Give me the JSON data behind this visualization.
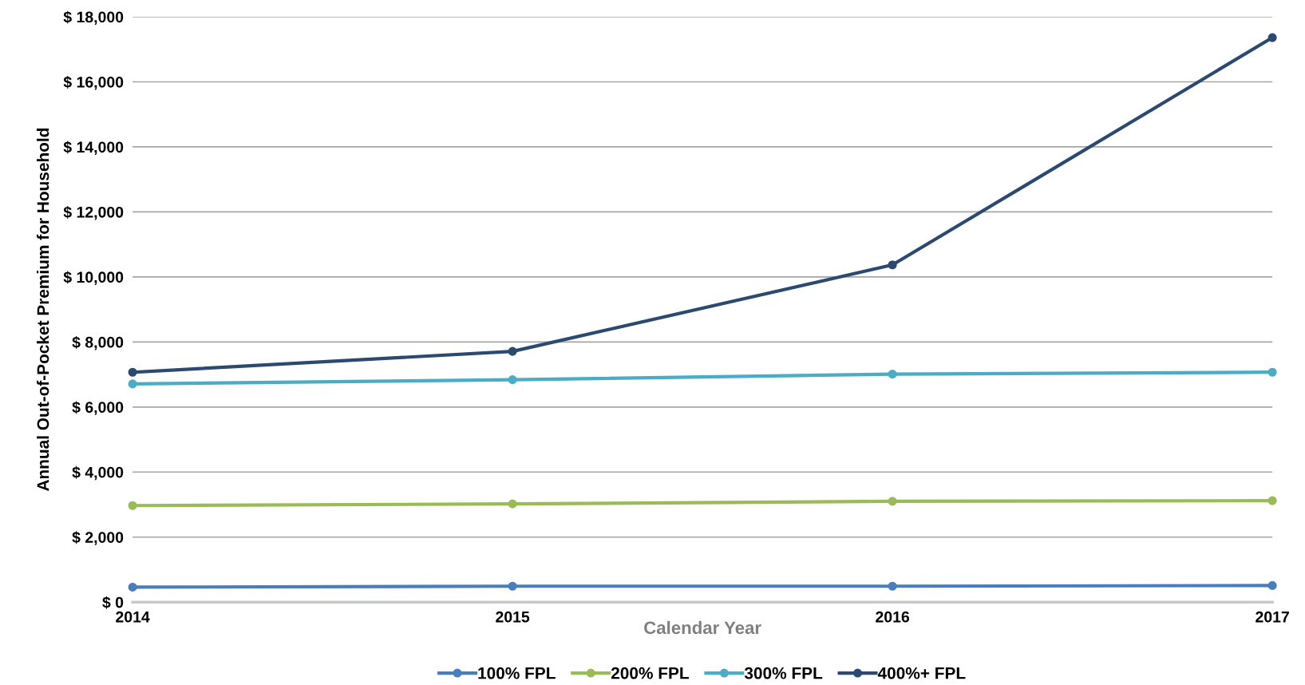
{
  "chart_data": {
    "type": "line",
    "xlabel": "Calendar Year",
    "ylabel": "Annual Out-of-Pocket Premium for Household",
    "categories": [
      "2014",
      "2015",
      "2016",
      "2017"
    ],
    "series": [
      {
        "name": "100% FPL",
        "color": "#4a7ebb",
        "values": [
          460,
          490,
          490,
          510
        ]
      },
      {
        "name": "200% FPL",
        "color": "#9bbb59",
        "values": [
          2970,
          3020,
          3100,
          3120
        ]
      },
      {
        "name": "300% FPL",
        "color": "#4bacc6",
        "values": [
          6710,
          6840,
          7010,
          7070
        ]
      },
      {
        "name": "400%+ FPL",
        "color": "#2c4a70",
        "values": [
          7070,
          7710,
          10370,
          17360
        ]
      }
    ],
    "ylim": [
      0,
      18000
    ],
    "yticks": [
      {
        "value": 0,
        "label": "$ 0"
      },
      {
        "value": 2000,
        "label": "$ 2,000"
      },
      {
        "value": 4000,
        "label": "$ 4,000"
      },
      {
        "value": 6000,
        "label": "$ 6,000"
      },
      {
        "value": 8000,
        "label": "$ 8,000"
      },
      {
        "value": 10000,
        "label": "$ 10,000"
      },
      {
        "value": 12000,
        "label": "$ 12,000"
      },
      {
        "value": 14000,
        "label": "$ 14,000"
      },
      {
        "value": 16000,
        "label": "$ 16,000"
      },
      {
        "value": 18000,
        "label": "$ 18,000"
      }
    ],
    "grid": "y",
    "legend": "bottom",
    "marker": "circle",
    "line_style": "solid"
  }
}
